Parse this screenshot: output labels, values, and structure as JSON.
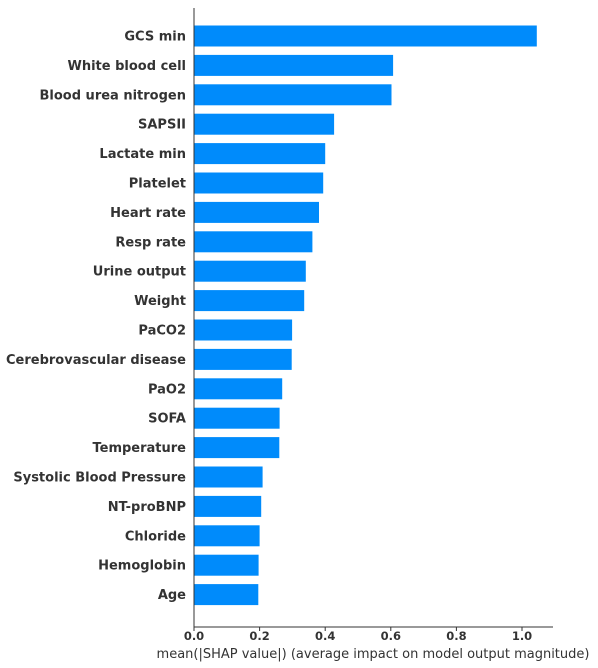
{
  "chart_data": {
    "type": "bar",
    "orientation": "horizontal",
    "categories": [
      "GCS min",
      "White blood cell",
      "Blood urea nitrogen",
      "SAPSII",
      "Lactate min",
      "Platelet",
      "Heart rate",
      "Resp rate",
      "Urine output",
      "Weight",
      "PaCO2",
      "Cerebrovascular disease",
      "PaO2",
      "SOFA",
      "Temperature",
      "Systolic Blood Pressure",
      "NT-proBNP",
      "Chloride",
      "Hemoglobin",
      "Age"
    ],
    "values": [
      1.045,
      0.607,
      0.602,
      0.427,
      0.4,
      0.394,
      0.381,
      0.361,
      0.341,
      0.336,
      0.299,
      0.298,
      0.269,
      0.261,
      0.26,
      0.209,
      0.205,
      0.2,
      0.197,
      0.196
    ],
    "xlabel": "mean(|SHAP value|) (average impact on model output magnitude)",
    "ylabel": "",
    "xlim": [
      0.0,
      1.1
    ],
    "xticks": [
      "0.0",
      "0.2",
      "0.4",
      "0.6",
      "0.8",
      "1.0"
    ],
    "grid": false,
    "bar_color": "#008bfb",
    "text_color": "#333333",
    "axis_color": "#333333"
  }
}
